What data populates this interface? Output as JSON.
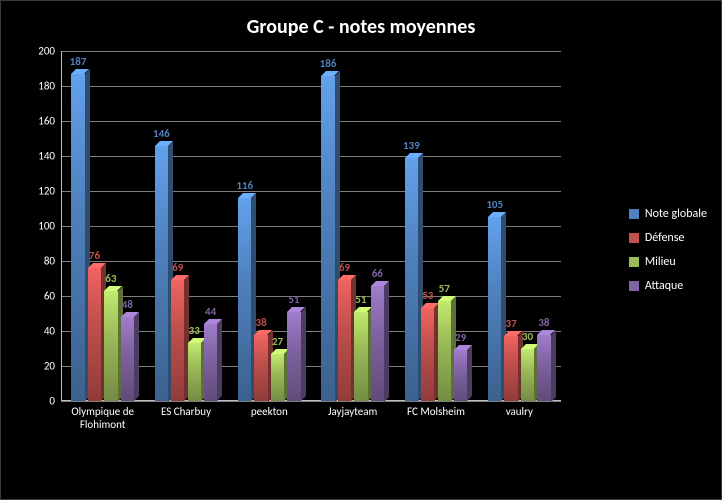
{
  "chart": {
    "type": "bar",
    "title": "Groupe C - notes moyennes",
    "title_fontsize": 20,
    "title_color": "#ffffff",
    "background_color": "#000000",
    "grid_color": "#7f7f7f",
    "axis_color": "#bfbfbf",
    "tick_label_color": "#ffffff",
    "tick_label_fontsize": 11,
    "ylim": [
      0,
      200
    ],
    "ytick_step": 20,
    "categories": [
      "Olympique de Flohimont",
      "ES Charbuy",
      "peekton",
      "Jayjayteam",
      "FC Molsheim",
      "vaulry"
    ],
    "series": [
      {
        "name": "Note globale",
        "color": "#4f81bd",
        "label_color": "#4f81bd",
        "values": [
          187,
          146,
          116,
          186,
          139,
          105
        ]
      },
      {
        "name": "Défense",
        "color": "#c0504d",
        "label_color": "#c0504d",
        "values": [
          76,
          69,
          38,
          69,
          53,
          37
        ]
      },
      {
        "name": "Milieu",
        "color": "#9bbb59",
        "label_color": "#9bbb59",
        "values": [
          63,
          33,
          27,
          51,
          57,
          30
        ]
      },
      {
        "name": "Attaque",
        "color": "#8064a2",
        "label_color": "#8064a2",
        "values": [
          48,
          44,
          51,
          66,
          29,
          38
        ]
      }
    ],
    "bar_group_gap": 0.25,
    "bar_inner_gap": 0.05,
    "depth3d": 5,
    "legend_fontsize": 12
  }
}
